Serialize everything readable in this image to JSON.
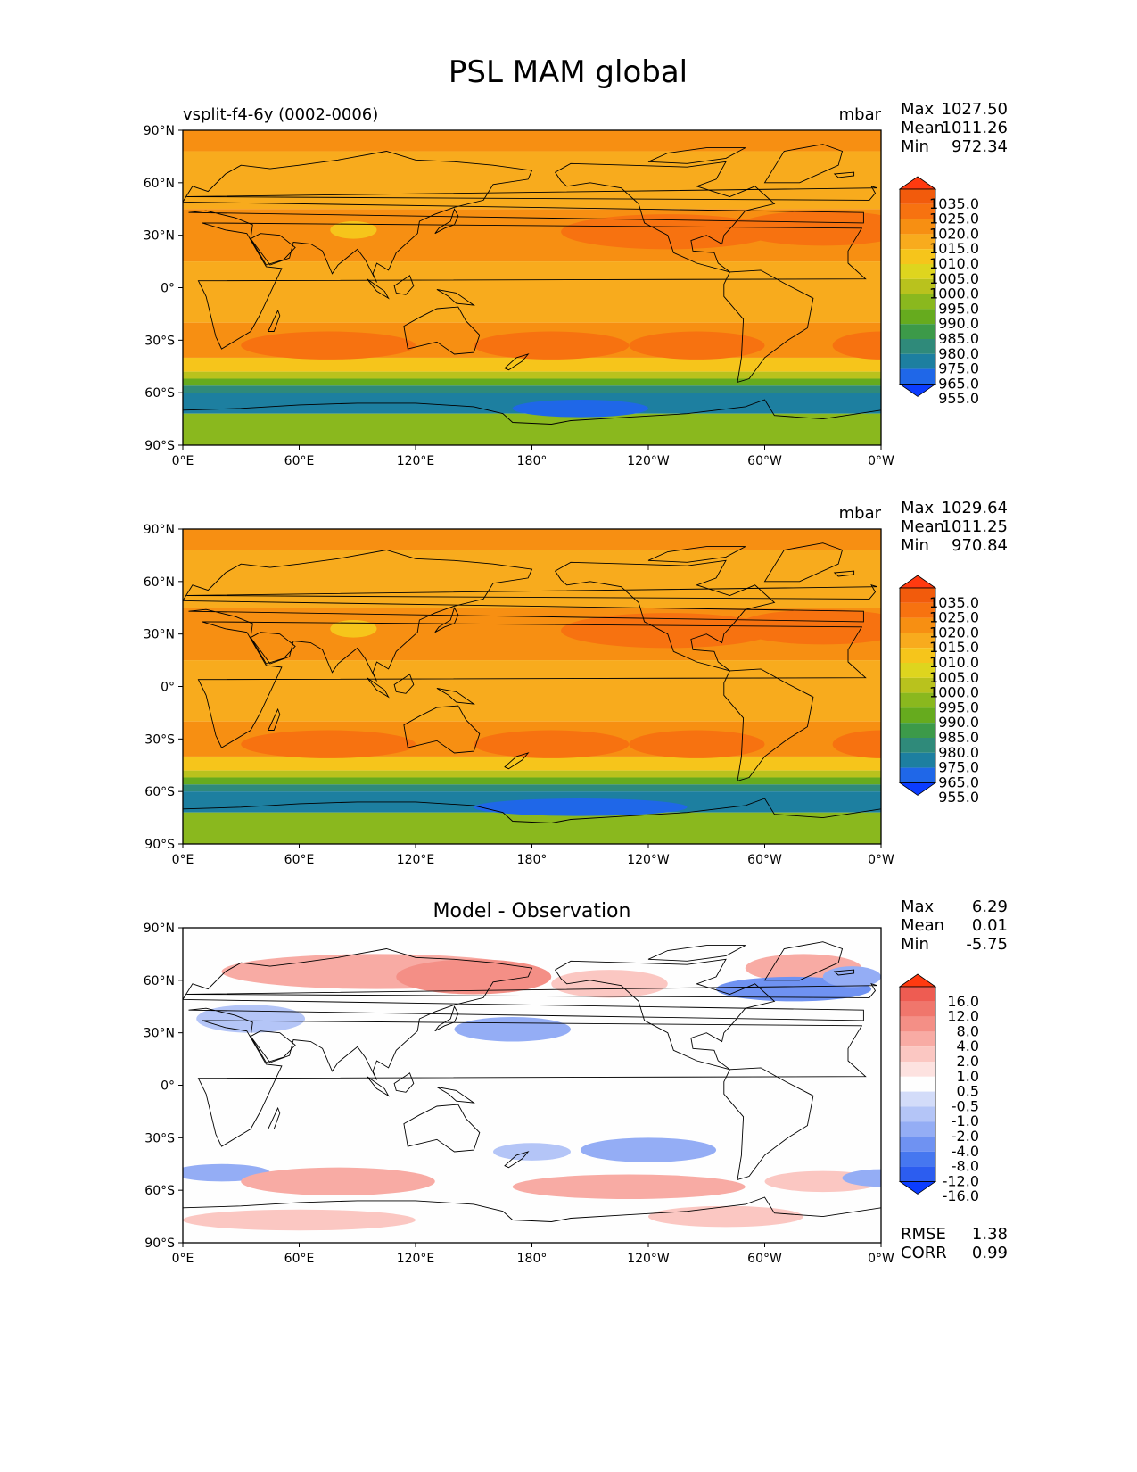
{
  "figure": {
    "title": "PSL MAM global"
  },
  "colors": {
    "psl_palette": [
      "#0b3cff",
      "#1f67e8",
      "#1d7fa0",
      "#2f8a7a",
      "#3c9a49",
      "#66ab1e",
      "#8ab81e",
      "#b9c21d",
      "#ded51e",
      "#f6c51b",
      "#f8ab1d",
      "#f78f12",
      "#f77210",
      "#f25b0c",
      "#ff3a10"
    ],
    "diff_palette": [
      "#0b3cff",
      "#2c5df0",
      "#4677f0",
      "#6f92f2",
      "#94adf5",
      "#b4c5f7",
      "#d3dcf9",
      "#fefefe",
      "#fde2e0",
      "#fbc7c2",
      "#f8aba4",
      "#f48f86",
      "#f0766c",
      "#ee5c52",
      "#ff3a10"
    ],
    "land_outline": "#000000"
  },
  "panels": [
    {
      "id": "model",
      "left_title": "vsplit-f4-6y (0002-0006)",
      "center_title": "",
      "units": "mbar",
      "stats": [
        {
          "label": "Max",
          "value": "1027.50"
        },
        {
          "label": "Mean",
          "value": "1011.26"
        },
        {
          "label": "Min",
          "value": "972.34"
        }
      ],
      "colorbar_levels": [
        "1035.0",
        "1025.0",
        "1020.0",
        "1015.0",
        "1010.0",
        "1005.0",
        "1000.0",
        "995.0",
        "990.0",
        "985.0",
        "980.0",
        "975.0",
        "965.0",
        "955.0"
      ],
      "x_ticks": [
        "0°E",
        "60°E",
        "120°E",
        "180°",
        "120°W",
        "60°W",
        "0°W"
      ],
      "y_ticks": [
        "90°N",
        "60°N",
        "30°N",
        "0°",
        "30°S",
        "60°S",
        "90°S"
      ]
    },
    {
      "id": "observation",
      "left_title": "",
      "center_title": "",
      "units": "mbar",
      "stats": [
        {
          "label": "Max",
          "value": "1029.64"
        },
        {
          "label": "Mean",
          "value": "1011.25"
        },
        {
          "label": "Min",
          "value": "970.84"
        }
      ],
      "colorbar_levels": [
        "1035.0",
        "1025.0",
        "1020.0",
        "1015.0",
        "1010.0",
        "1005.0",
        "1000.0",
        "995.0",
        "990.0",
        "985.0",
        "980.0",
        "975.0",
        "965.0",
        "955.0"
      ],
      "x_ticks": [
        "0°E",
        "60°E",
        "120°E",
        "180°",
        "120°W",
        "60°W",
        "0°W"
      ],
      "y_ticks": [
        "90°N",
        "60°N",
        "30°N",
        "0°",
        "30°S",
        "60°S",
        "90°S"
      ]
    },
    {
      "id": "difference",
      "left_title": "",
      "center_title": "Model - Observation",
      "units": "",
      "stats": [
        {
          "label": "Max",
          "value": "6.29"
        },
        {
          "label": "Mean",
          "value": "0.01"
        },
        {
          "label": "Min",
          "value": "-5.75"
        }
      ],
      "colorbar_levels": [
        "16.0",
        "12.0",
        "8.0",
        "4.0",
        "2.0",
        "1.0",
        "0.5",
        "-0.5",
        "-1.0",
        "-2.0",
        "-4.0",
        "-8.0",
        "-12.0",
        "-16.0"
      ],
      "x_ticks": [
        "0°E",
        "60°E",
        "120°E",
        "180°",
        "120°W",
        "60°W",
        "0°W"
      ],
      "y_ticks": [
        "90°N",
        "60°N",
        "30°N",
        "0°",
        "30°S",
        "60°S",
        "90°S"
      ],
      "extra_stats": [
        {
          "label": "RMSE",
          "value": "1.38"
        },
        {
          "label": "CORR",
          "value": "0.99"
        }
      ]
    }
  ]
}
